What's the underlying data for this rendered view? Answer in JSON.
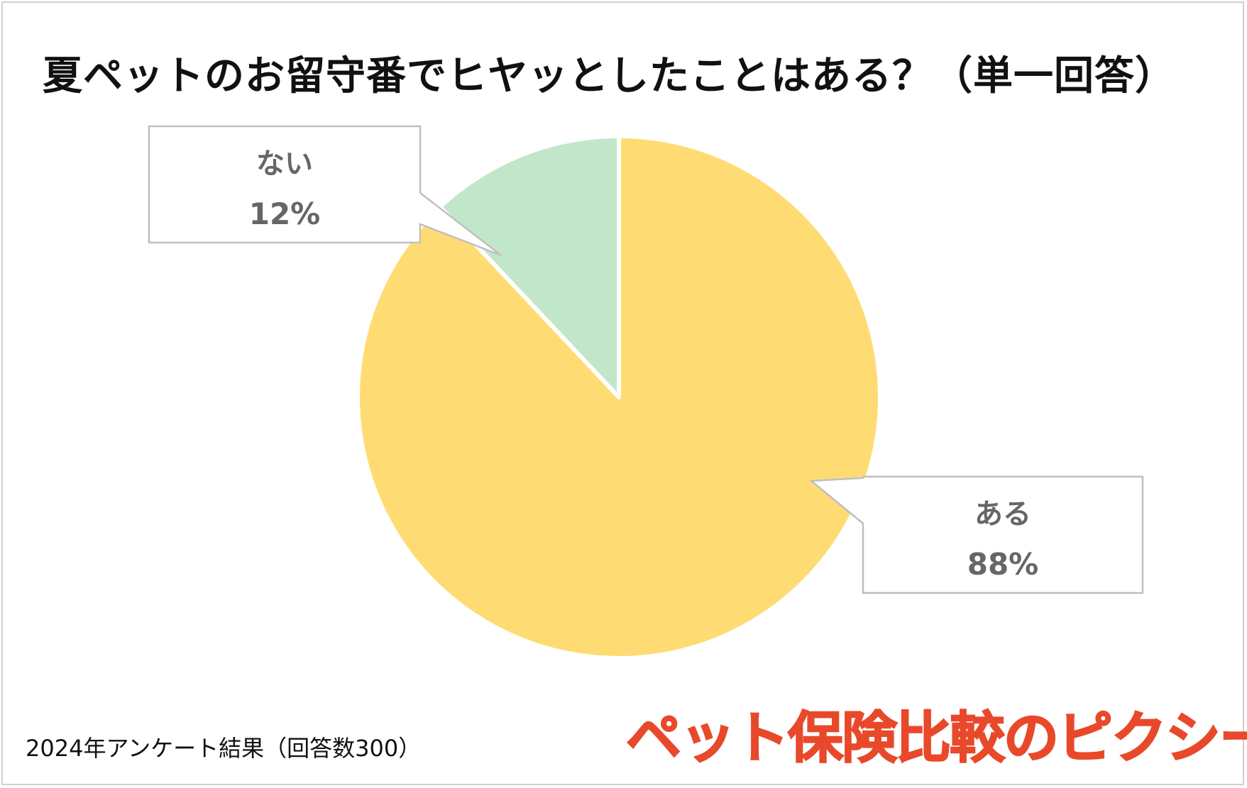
{
  "title": "夏ペットのお留守番でヒヤッとしたことはある？（単一回答）",
  "footnote": "2024年アンケート結果（回答数300）",
  "brand_logo_text": "ペット保険比較のピクシー",
  "colors": {
    "aru": "#FFDC73",
    "nai": "#C2E6CA",
    "label_text": "#666666",
    "brand": "#E8492A",
    "callout_border": "#bfbfbf"
  },
  "chart_data": {
    "type": "pie",
    "title": "夏ペットのお留守番でヒヤッとしたことはある？（単一回答）",
    "series": [
      {
        "name": "ない",
        "value": 12,
        "label": "12%",
        "color": "#C2E6CA"
      },
      {
        "name": "ある",
        "value": 88,
        "label": "88%",
        "color": "#FFDC73"
      }
    ],
    "start_angle_deg": 0,
    "direction": "counterclockwise",
    "data_labels": "callout boxes with category and percentage"
  }
}
